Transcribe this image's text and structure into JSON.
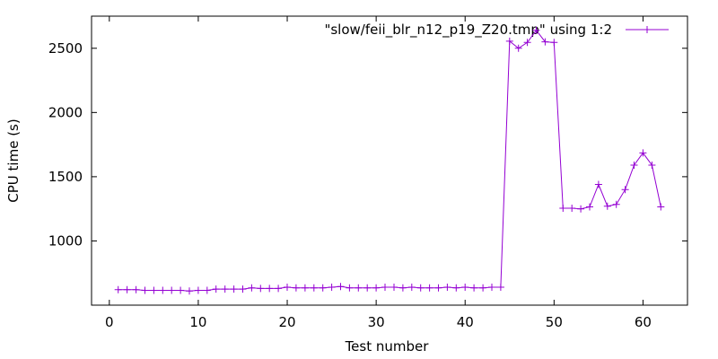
{
  "chart_data": {
    "type": "line",
    "title": "",
    "xlabel": "Test number",
    "ylabel": "CPU time (s)",
    "xlim": [
      -2,
      65
    ],
    "ylim": [
      500,
      2750
    ],
    "xticks": [
      0,
      10,
      20,
      30,
      40,
      50,
      60
    ],
    "yticks": [
      1000,
      1500,
      2000,
      2500
    ],
    "grid": false,
    "legend_position": "top-right",
    "series": [
      {
        "name": "\"slow/feii_blr_n12_p19_Z20.tmp\" using 1:2",
        "color": "#9400d3",
        "marker": "plus",
        "x": [
          1,
          2,
          3,
          4,
          5,
          6,
          7,
          8,
          9,
          10,
          11,
          12,
          13,
          14,
          15,
          16,
          17,
          18,
          19,
          20,
          21,
          22,
          23,
          24,
          25,
          26,
          27,
          28,
          29,
          30,
          31,
          32,
          33,
          34,
          35,
          36,
          37,
          38,
          39,
          40,
          41,
          42,
          43,
          44,
          45,
          46,
          47,
          48,
          49,
          50,
          51,
          52,
          53,
          54,
          55,
          56,
          57,
          58,
          59,
          60,
          61,
          62
        ],
        "values": [
          620,
          620,
          620,
          615,
          615,
          615,
          615,
          615,
          610,
          615,
          615,
          625,
          625,
          625,
          625,
          635,
          630,
          630,
          630,
          640,
          635,
          635,
          635,
          635,
          640,
          645,
          635,
          635,
          635,
          635,
          640,
          640,
          635,
          640,
          635,
          635,
          635,
          640,
          635,
          640,
          635,
          635,
          640,
          640,
          2555,
          2500,
          2545,
          2640,
          2550,
          2545,
          1255,
          1255,
          1250,
          1265,
          1440,
          1270,
          1285,
          1400,
          1590,
          1685,
          1590,
          1265
        ]
      }
    ]
  }
}
